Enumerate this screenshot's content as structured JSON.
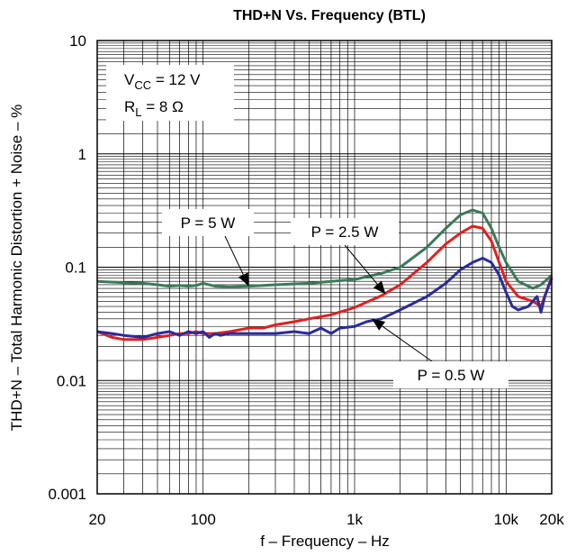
{
  "chart_data": {
    "type": "line",
    "title": "THD+N Vs. Frequency (BTL)",
    "xlabel": "f – Frequency – Hz",
    "ylabel": "THD+N – Total Harmonic Distortion + Noise – %",
    "x_scale": "log",
    "y_scale": "log",
    "xlim": [
      20,
      20000
    ],
    "ylim": [
      0.001,
      10
    ],
    "grid": true,
    "x_ticks": [
      {
        "value": 20,
        "label": "20"
      },
      {
        "value": 100,
        "label": "100"
      },
      {
        "value": 1000,
        "label": "1k"
      },
      {
        "value": 10000,
        "label": "10k"
      },
      {
        "value": 20000,
        "label": "20k"
      }
    ],
    "y_ticks": [
      {
        "value": 10,
        "label": "10"
      },
      {
        "value": 1,
        "label": "1"
      },
      {
        "value": 0.1,
        "label": "0.1"
      },
      {
        "value": 0.01,
        "label": "0.01"
      },
      {
        "value": 0.001,
        "label": "0.001"
      }
    ],
    "conditions": {
      "vcc_main": "V",
      "vcc_sub": "CC",
      "vcc_value": " = 12 V",
      "rl_main": "R",
      "rl_sub": "L",
      "rl_value": " = 8 Ω"
    },
    "series": [
      {
        "name": "P = 5 W",
        "color": "#3a7a5a",
        "x": [
          20,
          30,
          40,
          50,
          60,
          70,
          80,
          90,
          100,
          120,
          150,
          200,
          300,
          500,
          700,
          1000,
          1500,
          2000,
          3000,
          4000,
          5000,
          6000,
          7000,
          8000,
          9000,
          10000,
          12000,
          15000,
          17000,
          20000
        ],
        "y": [
          0.075,
          0.073,
          0.072,
          0.07,
          0.068,
          0.069,
          0.068,
          0.069,
          0.072,
          0.068,
          0.067,
          0.068,
          0.07,
          0.072,
          0.075,
          0.078,
          0.088,
          0.1,
          0.15,
          0.22,
          0.29,
          0.32,
          0.3,
          0.22,
          0.15,
          0.11,
          0.075,
          0.065,
          0.07,
          0.085
        ]
      },
      {
        "name": "P = 2.5 W",
        "color": "#e02020",
        "x": [
          20,
          25,
          30,
          40,
          50,
          60,
          70,
          80,
          90,
          100,
          120,
          150,
          200,
          250,
          300,
          400,
          500,
          700,
          1000,
          1500,
          2000,
          3000,
          4000,
          5000,
          6000,
          7000,
          8000,
          9000,
          10000,
          12000,
          15000,
          17000,
          20000
        ],
        "y": [
          0.027,
          0.024,
          0.023,
          0.023,
          0.024,
          0.025,
          0.026,
          0.026,
          0.027,
          0.026,
          0.026,
          0.027,
          0.029,
          0.029,
          0.031,
          0.033,
          0.035,
          0.038,
          0.044,
          0.056,
          0.07,
          0.11,
          0.16,
          0.2,
          0.23,
          0.22,
          0.17,
          0.11,
          0.075,
          0.055,
          0.05,
          0.045,
          0.082
        ]
      },
      {
        "name": "P = 0.5 W",
        "color": "#2b2b9a",
        "x": [
          20,
          25,
          30,
          40,
          50,
          60,
          70,
          80,
          90,
          100,
          110,
          120,
          130,
          150,
          200,
          300,
          400,
          500,
          600,
          700,
          800,
          1000,
          1200,
          1500,
          2000,
          3000,
          4000,
          5000,
          6000,
          7000,
          8000,
          9000,
          10000,
          11000,
          12000,
          14000,
          16000,
          17000,
          18000,
          20000
        ],
        "y": [
          0.027,
          0.026,
          0.025,
          0.024,
          0.026,
          0.027,
          0.025,
          0.027,
          0.026,
          0.027,
          0.024,
          0.026,
          0.025,
          0.026,
          0.026,
          0.026,
          0.027,
          0.026,
          0.029,
          0.026,
          0.029,
          0.03,
          0.033,
          0.035,
          0.042,
          0.055,
          0.072,
          0.095,
          0.11,
          0.12,
          0.11,
          0.085,
          0.06,
          0.045,
          0.042,
          0.045,
          0.055,
          0.04,
          0.055,
          0.08
        ]
      }
    ],
    "annotations": [
      {
        "text": "P = 5 W",
        "series": 0
      },
      {
        "text": "P = 2.5 W",
        "series": 1
      },
      {
        "text": "P = 0.5 W",
        "series": 2
      }
    ]
  }
}
